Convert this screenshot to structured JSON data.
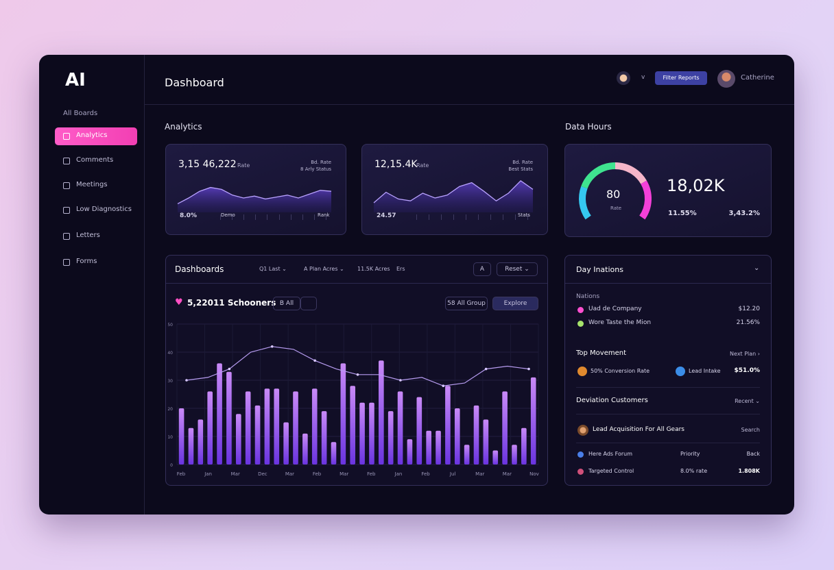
{
  "sidebar": {
    "logo": "AI",
    "section": "All Boards",
    "items": [
      "Analytics",
      "Comments",
      "Meetings",
      "Low Diagnostics",
      "Letters",
      "Forms"
    ]
  },
  "header": {
    "title": "Dashboard",
    "chevron": "v",
    "button": "Filter Reports",
    "user": "Catherine"
  },
  "analytics": {
    "title": "Analytics",
    "cards": [
      {
        "value": "3,15 46,222",
        "unit": "Rate",
        "meta": [
          "Bd. Rate",
          "8 Arly Status"
        ],
        "footer": [
          "8.0%",
          "Demo",
          "Rank"
        ],
        "spark": [
          18,
          30,
          44,
          52,
          48,
          36,
          30,
          34,
          28,
          32,
          36,
          30,
          38,
          46,
          44
        ]
      },
      {
        "value": "12,15.4K",
        "unit": "Rate",
        "meta": [
          "Bd. Rate",
          "Best Stats"
        ],
        "footer": [
          "24.57",
          "Stats"
        ],
        "spark": [
          20,
          42,
          28,
          24,
          40,
          30,
          36,
          54,
          62,
          44,
          24,
          40,
          66,
          48
        ]
      }
    ]
  },
  "data_hours": {
    "title": "Data Hours",
    "gauge": "80",
    "gauge_label": "Rate",
    "value": "18,02K",
    "left": "11.55%",
    "right": "3,43.2%"
  },
  "dashboards": {
    "title": "Dashboards",
    "filters": [
      "Q1 Last ⌄",
      "A Plan Acres ⌄",
      "11.5K Acres",
      "Ers"
    ],
    "tools": [
      "A",
      "Reset ⌄"
    ],
    "subtitle": "5,22011 Schooners",
    "pill": "B All",
    "actions": [
      "58 All Group",
      "Explore"
    ],
    "chart": {
      "type": "bar",
      "ylim": [
        0,
        50
      ],
      "yticks": [
        0,
        10,
        20,
        30,
        40,
        50
      ],
      "values": [
        20,
        13,
        16,
        26,
        36,
        33,
        18,
        26,
        21,
        27,
        27,
        15,
        26,
        11,
        27,
        19,
        8,
        36,
        28,
        22,
        22,
        37,
        19,
        26,
        9,
        24,
        12,
        12,
        28,
        20,
        7,
        21,
        16,
        5,
        26,
        7,
        13,
        31
      ],
      "line": [
        30,
        31,
        34,
        40,
        42,
        41,
        37,
        34,
        32,
        32,
        30,
        31,
        28,
        29,
        34,
        35,
        34
      ],
      "x_labels": [
        "Feb",
        "Jan",
        "Mar",
        "Dec",
        "Mar",
        "Feb",
        "Mar",
        "Feb",
        "Jan",
        "Feb",
        "Jul",
        "Mar",
        "Mar",
        "Nov"
      ]
    }
  },
  "day_nations": {
    "title": "Day Inations",
    "group1": {
      "label": "Nations",
      "rows": [
        [
          "Uad de Company",
          "$12.20"
        ],
        [
          "Wore Taste the Mion",
          "21.56%"
        ]
      ]
    },
    "group2": {
      "title": "Top Movement",
      "link": "Next Plan ›",
      "row": [
        "50% Conversion Rate",
        "Lead Intake",
        "$51.0%"
      ]
    },
    "group3": {
      "title": "Deviation Customers",
      "link": "Recent ⌄",
      "row": [
        "Lead Acquisition For All Gears",
        "Search"
      ],
      "rows": [
        [
          "Here Ads Forum",
          "Priority",
          "Back"
        ],
        [
          "Targeted Control",
          "8.0% rate",
          "1.808K"
        ]
      ]
    }
  }
}
